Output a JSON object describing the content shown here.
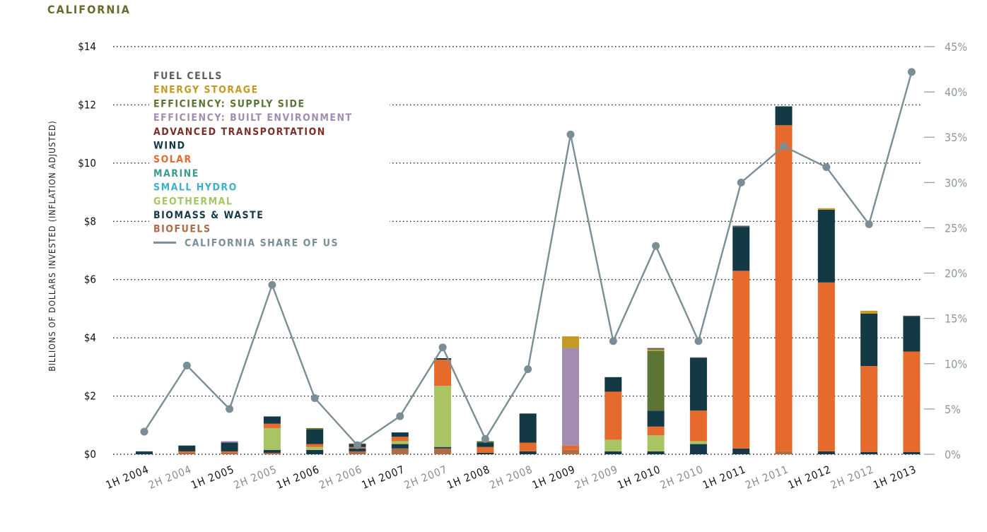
{
  "title": "CALIFORNIA",
  "chart_data": {
    "type": "bar",
    "stacked": true,
    "title": "CALIFORNIA",
    "ylabel": "BILLIONS OF DOLLARS INVESTED (INFLATION ADJUSTED)",
    "ylim": [
      0,
      14
    ],
    "y_ticks": [
      "$0",
      "$2",
      "$4",
      "$6",
      "$8",
      "$10",
      "$12",
      "$14"
    ],
    "y2lim": [
      0,
      45
    ],
    "y2_ticks": [
      "0%",
      "5%",
      "10%",
      "15%",
      "20%",
      "25%",
      "30%",
      "35%",
      "40%",
      "45%"
    ],
    "grid": true,
    "legend_position": "top-left",
    "categories": [
      "1H 2004",
      "2H 2004",
      "1H 2005",
      "2H 2005",
      "1H 2006",
      "2H 2006",
      "1H 2007",
      "2H 2007",
      "1H 2008",
      "2H 2008",
      "1H 2009",
      "2H 2009",
      "1H 2010",
      "2H 2010",
      "1H 2011",
      "2H 2011",
      "1H 2012",
      "2H 2012",
      "1H 2013"
    ],
    "series": [
      {
        "name": "BIOFUELS",
        "color": "#b06a44",
        "values": [
          0,
          0.05,
          0.05,
          0.05,
          0,
          0.1,
          0.2,
          0.2,
          0,
          0,
          0.15,
          0,
          0,
          0,
          0,
          0.1,
          0,
          0,
          0
        ]
      },
      {
        "name": "BIOMASS & WASTE",
        "color": "#15394a",
        "values": [
          0.05,
          0,
          0,
          0.1,
          0.15,
          0.1,
          0.15,
          0.05,
          0.05,
          0.1,
          0,
          0.1,
          0.1,
          0.35,
          0.2,
          0,
          0.1,
          0.08,
          0.08
        ]
      },
      {
        "name": "GEOTHERMAL",
        "color": "#a9c463",
        "values": [
          0,
          0,
          0,
          0.75,
          0.1,
          0,
          0.1,
          2.1,
          0,
          0,
          0,
          0.4,
          0.55,
          0.1,
          0,
          0,
          0,
          0,
          0
        ]
      },
      {
        "name": "SMALL HYDRO",
        "color": "#3fb0cc",
        "values": [
          0,
          0,
          0,
          0,
          0,
          0,
          0,
          0,
          0,
          0,
          0,
          0,
          0,
          0,
          0,
          0,
          0,
          0,
          0
        ]
      },
      {
        "name": "MARINE",
        "color": "#3a9b8f",
        "values": [
          0,
          0,
          0,
          0,
          0,
          0,
          0,
          0,
          0,
          0,
          0,
          0,
          0,
          0,
          0,
          0,
          0,
          0,
          0
        ]
      },
      {
        "name": "SOLAR",
        "color": "#e56a2c",
        "values": [
          0,
          0.05,
          0.05,
          0.15,
          0.1,
          0.05,
          0.15,
          0.9,
          0.2,
          0.3,
          0.15,
          1.65,
          0.3,
          1.05,
          6.1,
          11.2,
          5.8,
          2.95,
          3.45
        ]
      },
      {
        "name": "WIND",
        "color": "#133945",
        "values": [
          0.05,
          0.2,
          0.3,
          0.25,
          0.5,
          0.1,
          0.15,
          0.05,
          0.15,
          1.0,
          0,
          0.5,
          0.55,
          1.8,
          1.5,
          0.65,
          2.5,
          1.8,
          1.2
        ]
      },
      {
        "name": "ADVANCED TRANSPORTATION",
        "color": "#7b2f28",
        "values": [
          0,
          0,
          0,
          0,
          0,
          0,
          0,
          0,
          0,
          0,
          0,
          0,
          0,
          0,
          0,
          0,
          0,
          0,
          0
        ]
      },
      {
        "name": "EFFICIENCY: BUILT ENVIRONMENT",
        "color": "#a28caf",
        "values": [
          0,
          0,
          0.05,
          0,
          0,
          0,
          0,
          0,
          0,
          0,
          3.35,
          0,
          0,
          0,
          0,
          0,
          0,
          0,
          0
        ]
      },
      {
        "name": "EFFICIENCY: SUPPLY SIDE",
        "color": "#5c7434",
        "values": [
          0,
          0,
          0,
          0,
          0.05,
          0.02,
          0,
          0,
          0.05,
          0,
          0,
          0,
          2.05,
          0,
          0,
          0,
          0,
          0,
          0
        ]
      },
      {
        "name": "ENERGY STORAGE",
        "color": "#c49a22",
        "values": [
          0,
          0,
          0,
          0,
          0,
          0,
          0,
          0,
          0,
          0,
          0.4,
          0,
          0.05,
          0,
          0,
          0,
          0.05,
          0.1,
          0
        ]
      },
      {
        "name": "FUEL CELLS",
        "color": "#5e5c63",
        "values": [
          0,
          0,
          0,
          0,
          0,
          0,
          0,
          0,
          0,
          0,
          0,
          0,
          0.05,
          0.03,
          0.05,
          0,
          0,
          0,
          0.03
        ]
      }
    ],
    "line_series": {
      "name": "CALIFORNIA SHARE OF US",
      "color": "#7a8e96",
      "axis": "right",
      "values": [
        2.5,
        9.8,
        5.0,
        18.7,
        6.2,
        1.0,
        4.2,
        11.8,
        1.7,
        9.4,
        35.3,
        12.5,
        23.0,
        12.5,
        30.0,
        34.0,
        31.7,
        25.4,
        42.2
      ]
    }
  }
}
